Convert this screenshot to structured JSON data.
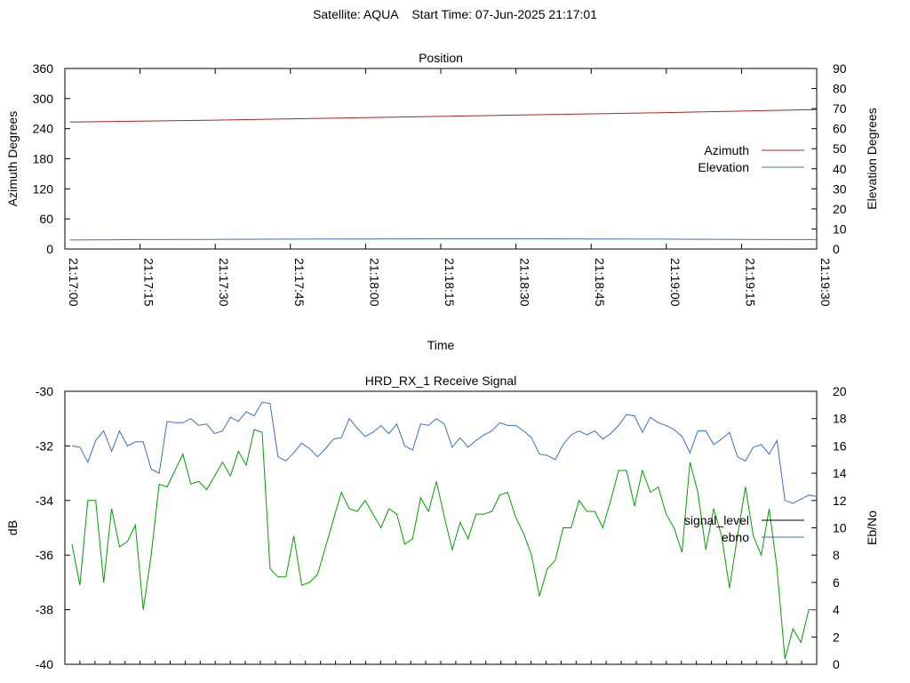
{
  "page_title": "Satellite: AQUA    Start Time: 07-Jun-2025 21:17:01",
  "chart_data": [
    {
      "type": "line",
      "title": "Position",
      "xlabel": "Time",
      "ylabel": "Azimuth Degrees",
      "y2label": "Elevation Degrees",
      "xlim": [
        "21:17:00",
        "21:19:30"
      ],
      "x_ticks": [
        "21:17:00",
        "21:17:15",
        "21:17:30",
        "21:17:45",
        "21:18:00",
        "21:18:15",
        "21:18:30",
        "21:18:45",
        "21:19:00",
        "21:19:15",
        "21:19:30"
      ],
      "ylim": [
        0,
        360
      ],
      "y_ticks": [
        "0",
        "60",
        "120",
        "180",
        "240",
        "300",
        "360"
      ],
      "y2lim": [
        0,
        90
      ],
      "y2_ticks": [
        "0",
        "10",
        "20",
        "30",
        "40",
        "50",
        "60",
        "70",
        "80",
        "90"
      ],
      "legend_position": "right",
      "series": [
        {
          "name": "Azimuth",
          "axis": "y",
          "color": "#b22222",
          "x": [
            "21:17:01",
            "21:17:30",
            "21:18:00",
            "21:18:30",
            "21:19:00",
            "21:19:30"
          ],
          "values": [
            253,
            257,
            262,
            267,
            272,
            278
          ]
        },
        {
          "name": "Elevation",
          "axis": "y2",
          "color": "#3a6fc4",
          "x": [
            "21:17:01",
            "21:17:15",
            "21:17:30",
            "21:17:45",
            "21:18:00",
            "21:18:15",
            "21:18:30",
            "21:18:45",
            "21:19:00",
            "21:19:15",
            "21:19:30"
          ],
          "values": [
            4.5,
            4.7,
            4.8,
            4.9,
            5.0,
            5.1,
            5.1,
            5.0,
            4.9,
            4.8,
            4.7
          ]
        }
      ]
    },
    {
      "type": "line",
      "title": "HRD_RX_1 Receive Signal",
      "xlabel": "",
      "ylabel": "dB",
      "y2label": "Eb/No",
      "ylim": [
        -40,
        -30
      ],
      "y_ticks": [
        "-40",
        "-38",
        "-36",
        "-34",
        "-32",
        "-30"
      ],
      "y2lim": [
        0,
        20
      ],
      "y2_ticks": [
        "0",
        "2",
        "4",
        "6",
        "8",
        "10",
        "12",
        "14",
        "16",
        "18",
        "20"
      ],
      "x_minor_ticks": 50,
      "legend_position": "right",
      "series": [
        {
          "name": "signal_level",
          "axis": "y",
          "legend_color": "#000000",
          "color": "#00a000",
          "values": [
            -35.6,
            -37.1,
            -34.0,
            -34.0,
            -37.0,
            -34.3,
            -35.7,
            -35.5,
            -34.9,
            -38.0,
            -36.0,
            -33.4,
            -33.5,
            -32.9,
            -32.3,
            -33.4,
            -33.3,
            -33.6,
            -33.1,
            -32.6,
            -33.1,
            -32.2,
            -32.7,
            -31.4,
            -31.5,
            -36.5,
            -36.8,
            -36.8,
            -35.3,
            -37.1,
            -37.0,
            -36.7,
            -35.7,
            -34.7,
            -33.7,
            -34.3,
            -34.4,
            -34.0,
            -34.5,
            -35.0,
            -34.3,
            -34.5,
            -35.6,
            -35.4,
            -33.9,
            -34.4,
            -33.3,
            -34.6,
            -35.8,
            -34.8,
            -35.4,
            -34.5,
            -34.5,
            -34.4,
            -33.8,
            -33.7,
            -34.6,
            -35.2,
            -36.0,
            -37.5,
            -36.5,
            -36.2,
            -35.0,
            -35.0,
            -34.0,
            -34.4,
            -34.4,
            -35.0,
            -34.0,
            -32.9,
            -32.9,
            -34.2,
            -32.9,
            -33.7,
            -33.5,
            -34.5,
            -35.0,
            -35.9,
            -32.6,
            -33.7,
            -35.8,
            -34.3,
            -35.3,
            -37.2,
            -35.3,
            -33.5,
            -35.3,
            -36.0,
            -34.3,
            -36.5,
            -39.8,
            -38.7,
            -39.2,
            -38.0,
            -38.0
          ]
        },
        {
          "name": "ebno",
          "axis": "y2",
          "color": "#3a6fc4",
          "values": [
            16.0,
            15.9,
            14.8,
            16.4,
            17.1,
            15.6,
            17.1,
            16.0,
            16.3,
            16.3,
            14.3,
            14.0,
            17.8,
            17.7,
            17.7,
            18.0,
            17.5,
            17.6,
            16.9,
            17.1,
            18.1,
            17.8,
            18.5,
            18.2,
            19.2,
            19.1,
            15.2,
            14.9,
            15.5,
            16.2,
            15.8,
            15.2,
            15.8,
            16.5,
            16.6,
            18.0,
            17.3,
            16.7,
            17.0,
            17.5,
            16.9,
            17.6,
            16.0,
            15.7,
            17.6,
            17.5,
            18.0,
            17.6,
            15.9,
            16.6,
            15.9,
            16.4,
            16.8,
            17.1,
            17.7,
            17.5,
            17.5,
            17.1,
            16.6,
            15.4,
            15.3,
            15.0,
            16.1,
            16.8,
            17.1,
            16.8,
            17.1,
            16.5,
            16.9,
            17.5,
            18.3,
            18.2,
            17.0,
            18.1,
            17.7,
            17.5,
            17.2,
            16.7,
            15.5,
            17.1,
            17.1,
            16.1,
            16.5,
            17.0,
            15.2,
            14.9,
            15.9,
            16.1,
            15.4,
            16.4,
            12.0,
            11.8,
            12.1,
            12.4,
            12.3
          ]
        }
      ]
    }
  ]
}
